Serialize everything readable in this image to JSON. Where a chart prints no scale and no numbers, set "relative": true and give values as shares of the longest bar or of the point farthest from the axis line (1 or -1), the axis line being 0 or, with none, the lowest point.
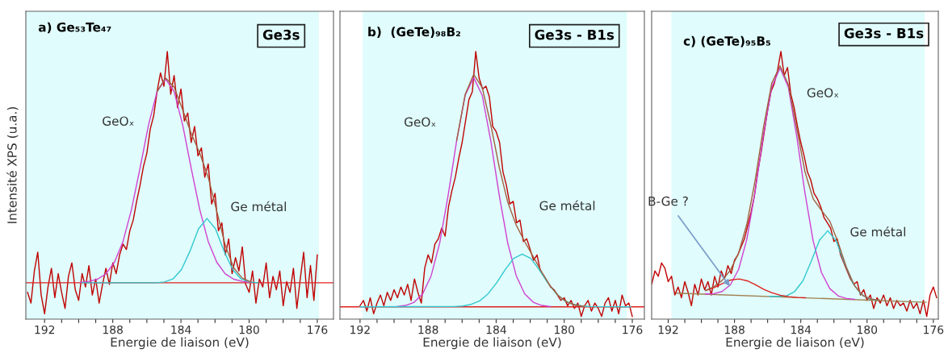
{
  "chart_data": [
    {
      "type": "line",
      "relative": true,
      "title": "a) Ge₅₃Te₄₇",
      "xlabel": "Energie de liaison (eV)",
      "ylabel": "Intensité XPS (u.a.)",
      "tick_labels": "x",
      "xlim": [
        193.1,
        175.05
      ],
      "xticks": [
        192,
        {
          "value": 191,
          "label": null
        },
        {
          "value": 190,
          "label": null
        },
        {
          "value": 189,
          "label": null
        },
        188,
        {
          "value": 187,
          "label": null
        },
        {
          "value": 186,
          "label": null
        },
        {
          "value": 185,
          "label": null
        },
        184,
        {
          "value": 183,
          "label": null
        },
        {
          "value": 182,
          "label": null
        },
        {
          "value": 181,
          "label": null
        },
        180,
        {
          "value": 179,
          "label": null
        },
        {
          "value": 178,
          "label": null
        },
        {
          "value": 177,
          "label": null
        },
        176
      ],
      "bands": [
        {
          "axis": "x",
          "from": 193.1,
          "to": 175.9,
          "color": "#e0fcfc"
        }
      ],
      "annotations": [
        "Ge3s",
        "GeOₓ",
        "Ge métal"
      ],
      "series": [
        {
          "color": "#c00000",
          "x": [
            193.0,
            192.8,
            192.6,
            192.4,
            192.2,
            192.0,
            191.8,
            191.6,
            191.4,
            191.2,
            191.0,
            190.8,
            190.6,
            190.4,
            190.2,
            190.0,
            189.8,
            189.6,
            189.4,
            189.2,
            189.0,
            188.8,
            188.6,
            188.4,
            188.2,
            188.0,
            187.8,
            187.6,
            187.4,
            187.2,
            187.0,
            186.8,
            186.6,
            186.4,
            186.2,
            186.0,
            185.8,
            185.6,
            185.4,
            185.2,
            185.0,
            184.8,
            184.6,
            184.4,
            184.2,
            184.0,
            183.8,
            183.6,
            183.4,
            183.2,
            183.0,
            182.8,
            182.6,
            182.4,
            182.2,
            182.0,
            181.8,
            181.6,
            181.4,
            181.2,
            181.0,
            180.8,
            180.6,
            180.4,
            180.2,
            180.0,
            179.8,
            179.6,
            179.4,
            179.2,
            179.0,
            178.8,
            178.6,
            178.4,
            178.2,
            178.0,
            177.8,
            177.6,
            177.4,
            177.2,
            177.0,
            176.8,
            176.6,
            176.4,
            176.2,
            176.0
          ],
          "values": [
            0.1,
            0.06,
            0.18,
            0.25,
            0.09,
            0.02,
            0.12,
            0.19,
            0.08,
            0.17,
            0.1,
            0.04,
            0.16,
            0.21,
            0.11,
            0.07,
            0.17,
            0.12,
            0.2,
            0.09,
            0.15,
            0.06,
            0.13,
            0.19,
            0.13,
            0.21,
            0.17,
            0.24,
            0.28,
            0.26,
            0.33,
            0.37,
            0.44,
            0.5,
            0.57,
            0.62,
            0.71,
            0.76,
            0.85,
            0.92,
            0.87,
            1.0,
            0.84,
            0.91,
            0.79,
            0.86,
            0.74,
            0.77,
            0.66,
            0.72,
            0.61,
            0.64,
            0.53,
            0.58,
            0.43,
            0.47,
            0.33,
            0.36,
            0.24,
            0.3,
            0.17,
            0.23,
            0.18,
            0.27,
            0.13,
            0.1,
            0.18,
            0.06,
            0.15,
            0.12,
            0.21,
            0.08,
            0.16,
            0.11,
            0.18,
            0.05,
            0.14,
            0.1,
            0.19,
            0.04,
            0.15,
            0.25,
            0.08,
            0.2,
            0.07,
            0.24
          ]
        },
        {
          "color": "#e02020",
          "x": [
            193.1,
            175.05
          ],
          "values": [
            0.136,
            0.136
          ]
        },
        {
          "color": "#d040d0",
          "x": [
            189.9,
            189.4,
            188.9,
            188.4,
            187.9,
            187.4,
            186.9,
            186.4,
            185.9,
            185.4,
            184.9,
            184.4,
            183.9,
            183.4,
            182.9,
            182.4,
            181.9,
            181.4,
            180.9,
            180.4,
            179.9
          ],
          "values": [
            0.137,
            0.141,
            0.149,
            0.169,
            0.213,
            0.29,
            0.41,
            0.564,
            0.726,
            0.85,
            0.897,
            0.85,
            0.726,
            0.564,
            0.41,
            0.29,
            0.213,
            0.169,
            0.149,
            0.141,
            0.137
          ]
        },
        {
          "color": "#30c8d0",
          "x": [
            189.8,
            185.47,
            184.97,
            184.47,
            183.97,
            183.47,
            182.97,
            182.47,
            181.97,
            181.47,
            180.97,
            180.47,
            179.97,
            179.47
          ],
          "values": [
            0.136,
            0.136,
            0.139,
            0.15,
            0.185,
            0.254,
            0.337,
            0.376,
            0.337,
            0.254,
            0.185,
            0.15,
            0.139,
            0.136
          ]
        },
        {
          "color": "#a06040",
          "x": [
            185.4,
            184.9,
            184.4,
            183.9,
            183.4,
            182.9,
            182.4,
            181.9,
            181.4,
            180.9,
            180.4,
            179.9
          ],
          "values": [
            0.85,
            0.901,
            0.867,
            0.782,
            0.694,
            0.62,
            0.53,
            0.404,
            0.276,
            0.191,
            0.153,
            0.139
          ]
        }
      ]
    },
    {
      "type": "line",
      "relative": true,
      "title": "b)  (GeTe)₉₈B₂",
      "xlabel": "Energie de liaison (eV)",
      "tick_labels": "x",
      "xlim": [
        193.18,
        175.29
      ],
      "xticks": [
        192,
        {
          "value": 191,
          "label": null
        },
        {
          "value": 190,
          "label": null
        },
        {
          "value": 189,
          "label": null
        },
        188,
        {
          "value": 187,
          "label": null
        },
        {
          "value": 186,
          "label": null
        },
        {
          "value": 185,
          "label": null
        },
        184,
        {
          "value": 183,
          "label": null
        },
        {
          "value": 182,
          "label": null
        },
        {
          "value": 181,
          "label": null
        },
        180,
        {
          "value": 179,
          "label": null
        },
        {
          "value": 178,
          "label": null
        },
        {
          "value": 177,
          "label": null
        },
        176
      ],
      "bands": [
        {
          "axis": "x",
          "from": 191.84,
          "to": 176.32,
          "color": "#e0fcfc"
        }
      ],
      "annotations": [
        "Ge3s - B1s",
        "GeOₓ",
        "Ge métal"
      ],
      "series": [
        {
          "color": "#c00000",
          "x": [
            192.0,
            191.8,
            191.6,
            191.4,
            191.2,
            191.0,
            190.8,
            190.6,
            190.4,
            190.2,
            190.0,
            189.8,
            189.6,
            189.4,
            189.2,
            189.0,
            188.8,
            188.6,
            188.4,
            188.2,
            188.0,
            187.8,
            187.6,
            187.4,
            187.2,
            187.0,
            186.8,
            186.6,
            186.4,
            186.2,
            186.0,
            185.8,
            185.6,
            185.4,
            185.2,
            185.0,
            184.8,
            184.6,
            184.4,
            184.2,
            184.0,
            183.8,
            183.6,
            183.4,
            183.2,
            183.0,
            182.8,
            182.6,
            182.4,
            182.2,
            182.0,
            181.8,
            181.6,
            181.4,
            181.2,
            181.0,
            180.8,
            180.6,
            180.4,
            180.2,
            180.0,
            179.8,
            179.6,
            179.4,
            179.2,
            179.0,
            178.8,
            178.6,
            178.4,
            178.2,
            178.0,
            177.8,
            177.6,
            177.4,
            177.2,
            177.0,
            176.8,
            176.6,
            176.4,
            176.2,
            176.0
          ],
          "values": [
            0.05,
            0.07,
            0.03,
            0.08,
            0.02,
            0.06,
            0.09,
            0.05,
            0.1,
            0.07,
            0.11,
            0.08,
            0.12,
            0.09,
            0.13,
            0.07,
            0.15,
            0.1,
            0.06,
            0.19,
            0.24,
            0.21,
            0.28,
            0.3,
            0.34,
            0.31,
            0.42,
            0.48,
            0.53,
            0.6,
            0.66,
            0.74,
            0.82,
            0.85,
            1.0,
            0.9,
            0.86,
            0.87,
            0.83,
            0.72,
            0.7,
            0.66,
            0.55,
            0.5,
            0.43,
            0.44,
            0.36,
            0.37,
            0.29,
            0.3,
            0.26,
            0.22,
            0.24,
            0.18,
            0.16,
            0.14,
            0.12,
            0.11,
            0.09,
            0.07,
            0.08,
            0.05,
            0.07,
            0.04,
            0.06,
            0.01,
            0.05,
            0.07,
            0.03,
            0.06,
            0.04,
            0.01,
            0.06,
            0.08,
            0.03,
            0.07,
            0.02,
            0.09,
            0.05,
            0.06,
            0.01
          ]
        },
        {
          "color": "#e02020",
          "x": [
            193.18,
            175.29
          ],
          "values": [
            0.046,
            0.046
          ]
        },
        {
          "color": "#d040d0",
          "x": [
            189.82,
            189.32,
            188.82,
            188.32,
            187.82,
            187.32,
            186.82,
            186.32,
            185.82,
            185.32,
            184.82,
            184.32,
            183.82,
            183.32,
            182.82,
            182.32,
            181.82,
            181.32,
            180.82
          ],
          "values": [
            0.047,
            0.051,
            0.063,
            0.094,
            0.162,
            0.284,
            0.463,
            0.667,
            0.836,
            0.902,
            0.836,
            0.667,
            0.463,
            0.284,
            0.162,
            0.094,
            0.063,
            0.051,
            0.047
          ]
        },
        {
          "color": "#30c8d0",
          "x": [
            192.0,
            186.47,
            185.97,
            185.47,
            184.97,
            184.47,
            183.97,
            183.47,
            182.97,
            182.47,
            181.97,
            181.47,
            180.97,
            180.47,
            179.97,
            179.47,
            178.97,
            178.47,
            176.1
          ],
          "values": [
            0.046,
            0.047,
            0.049,
            0.055,
            0.068,
            0.095,
            0.136,
            0.185,
            0.227,
            0.243,
            0.227,
            0.185,
            0.136,
            0.095,
            0.068,
            0.055,
            0.049,
            0.047,
            0.046
          ]
        },
        {
          "color": "#a06040",
          "x": [
            186.32,
            185.82,
            185.32,
            184.82,
            184.32,
            183.82,
            183.32,
            182.82,
            182.32,
            181.82,
            181.32,
            180.82,
            180.32,
            179.82,
            179.32,
            178.82
          ],
          "values": [
            0.668,
            0.84,
            0.914,
            0.865,
            0.727,
            0.568,
            0.437,
            0.351,
            0.289,
            0.233,
            0.176,
            0.124,
            0.086,
            0.063,
            0.052,
            0.048
          ]
        }
      ]
    },
    {
      "type": "line",
      "relative": true,
      "title": "c) (GeTe)₉₅B₅",
      "xlabel": "Energie de liaison (eV)",
      "tick_labels": "x",
      "xlim": [
        193.0,
        175.7
      ],
      "xticks": [
        192,
        {
          "value": 191,
          "label": null
        },
        {
          "value": 190,
          "label": null
        },
        {
          "value": 189,
          "label": null
        },
        188,
        {
          "value": 187,
          "label": null
        },
        {
          "value": 186,
          "label": null
        },
        {
          "value": 185,
          "label": null
        },
        184,
        {
          "value": 183,
          "label": null
        },
        {
          "value": 182,
          "label": null
        },
        {
          "value": 181,
          "label": null
        },
        180,
        {
          "value": 179,
          "label": null
        },
        {
          "value": 178,
          "label": null
        },
        {
          "value": 177,
          "label": null
        },
        176
      ],
      "bands": [
        {
          "axis": "x",
          "from": 191.81,
          "to": 176.52,
          "color": "#e0fcfc"
        }
      ],
      "annotations": [
        "Ge3s - B1s",
        "GeOₓ",
        "Ge métal",
        {
          "text": "B-Ge ?",
          "x": 188.28,
          "y": 0.123
        }
      ],
      "series": [
        {
          "color": "#c00000",
          "x": [
            193.0,
            192.8,
            192.6,
            192.4,
            192.2,
            192.0,
            191.8,
            191.6,
            191.4,
            191.2,
            191.0,
            190.8,
            190.6,
            190.4,
            190.2,
            190.0,
            189.8,
            189.6,
            189.4,
            189.2,
            189.0,
            188.8,
            188.6,
            188.4,
            188.2,
            188.0,
            187.8,
            187.6,
            187.4,
            187.2,
            187.0,
            186.8,
            186.6,
            186.4,
            186.2,
            186.0,
            185.8,
            185.6,
            185.4,
            185.2,
            185.0,
            184.8,
            184.6,
            184.4,
            184.2,
            184.0,
            183.8,
            183.6,
            183.4,
            183.2,
            183.0,
            182.8,
            182.6,
            182.4,
            182.2,
            182.0,
            181.8,
            181.6,
            181.4,
            181.2,
            181.0,
            180.8,
            180.6,
            180.4,
            180.2,
            180.0,
            179.8,
            179.6,
            179.4,
            179.2,
            179.0,
            178.8,
            178.6,
            178.4,
            178.2,
            178.0,
            177.8,
            177.6,
            177.4,
            177.2,
            177.0,
            176.8,
            176.6,
            176.4,
            176.2,
            176.0,
            175.8
          ],
          "values": [
            0.13,
            0.18,
            0.16,
            0.21,
            0.19,
            0.14,
            0.16,
            0.09,
            0.12,
            0.08,
            0.14,
            0.1,
            0.05,
            0.13,
            0.09,
            0.15,
            0.11,
            0.14,
            0.09,
            0.16,
            0.12,
            0.18,
            0.15,
            0.2,
            0.17,
            0.22,
            0.24,
            0.27,
            0.3,
            0.35,
            0.4,
            0.46,
            0.55,
            0.62,
            0.7,
            0.78,
            0.85,
            0.88,
            0.93,
            1.0,
            0.91,
            0.94,
            0.84,
            0.79,
            0.72,
            0.66,
            0.61,
            0.55,
            0.52,
            0.47,
            0.45,
            0.42,
            0.38,
            0.36,
            0.34,
            0.29,
            0.3,
            0.24,
            0.21,
            0.18,
            0.15,
            0.13,
            0.14,
            0.09,
            0.11,
            0.07,
            0.09,
            0.04,
            0.08,
            0.06,
            0.09,
            0.05,
            0.08,
            0.04,
            0.07,
            0.05,
            0.06,
            0.03,
            0.07,
            0.04,
            0.06,
            0.02,
            0.07,
            0.01,
            0.09,
            0.12,
            0.08
          ]
        },
        {
          "color": "#a08050",
          "x": [
            191.5,
            176.44
          ],
          "values": [
            0.097,
            0.063
          ]
        },
        {
          "color": "#d040d0",
          "x": [
            189.75,
            189.25,
            188.75,
            188.25,
            187.75,
            187.25,
            186.75,
            186.25,
            185.75,
            185.25,
            184.75,
            184.25,
            183.75,
            183.25,
            182.75,
            182.25,
            181.75,
            181.25,
            180.75
          ],
          "values": [
            0.094,
            0.095,
            0.103,
            0.128,
            0.186,
            0.3,
            0.478,
            0.69,
            0.868,
            0.938,
            0.866,
            0.685,
            0.472,
            0.291,
            0.174,
            0.114,
            0.087,
            0.077,
            0.074
          ]
        },
        {
          "color": "#30c8d0",
          "x": [
            185.87,
            185.37,
            184.87,
            184.37,
            183.87,
            183.37,
            182.87,
            182.37,
            181.87,
            181.37,
            180.87,
            180.37,
            179.87,
            179.37
          ],
          "values": [
            0.085,
            0.085,
            0.087,
            0.103,
            0.143,
            0.216,
            0.295,
            0.33,
            0.293,
            0.211,
            0.136,
            0.094,
            0.076,
            0.071
          ]
        },
        {
          "color": "#e02020",
          "x": [
            189.73,
            189.23,
            188.73,
            188.23,
            187.73,
            187.23,
            186.73,
            186.23,
            185.73,
            185.23,
            184.73,
            184.23,
            183.73
          ],
          "values": [
            0.107,
            0.118,
            0.133,
            0.146,
            0.15,
            0.143,
            0.128,
            0.111,
            0.098,
            0.089,
            0.084,
            0.081,
            0.08
          ]
        },
        {
          "color": "#a06040",
          "x": [
            189.75,
            189.25,
            188.75,
            188.25,
            187.75,
            187.25,
            186.75,
            186.25,
            185.75,
            185.25,
            184.75,
            184.25,
            183.75,
            183.25,
            182.75,
            182.25,
            181.75,
            181.25,
            180.75,
            180.25,
            179.75,
            179.25
          ],
          "values": [
            0.107,
            0.121,
            0.144,
            0.183,
            0.247,
            0.356,
            0.52,
            0.717,
            0.882,
            0.946,
            0.876,
            0.714,
            0.551,
            0.449,
            0.406,
            0.366,
            0.287,
            0.194,
            0.124,
            0.088,
            0.075,
            0.071
          ]
        }
      ]
    }
  ]
}
